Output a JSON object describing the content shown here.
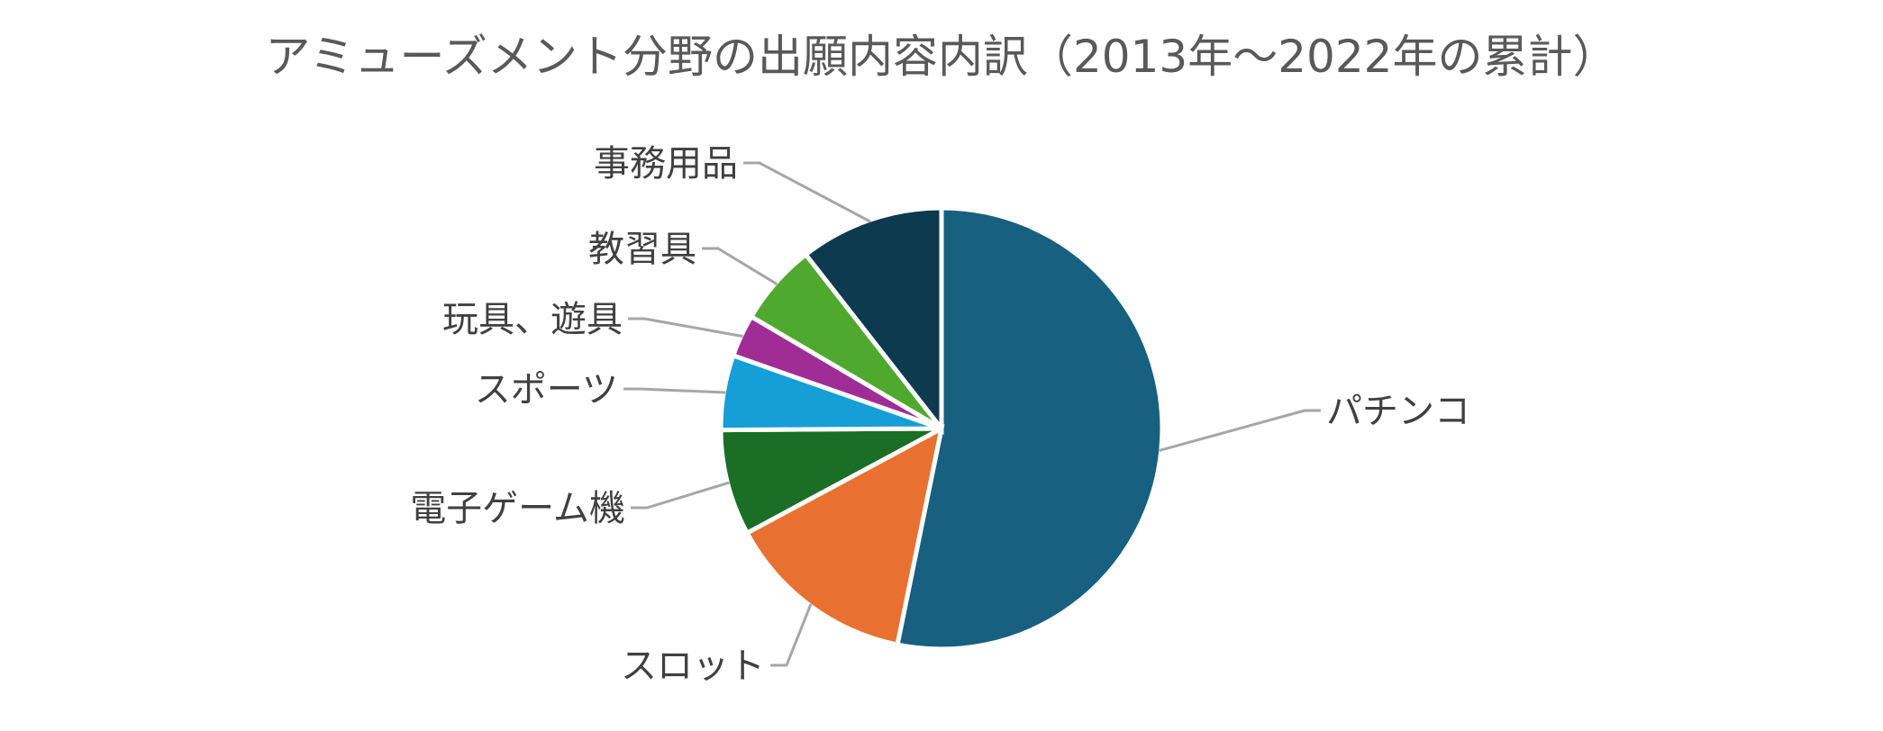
{
  "chart_data": {
    "type": "pie",
    "title": "アミューズメント分野の出願内容内訳（2013年〜2022年の累計）",
    "start_angle_deg": 0,
    "direction": "clockwise",
    "legend": "none",
    "slices": [
      {
        "label": "パチンコ",
        "value": 51.5,
        "color": "#17607f"
      },
      {
        "label": "スロット",
        "value": 13.5,
        "color": "#e87131"
      },
      {
        "label": "電子ゲーム機",
        "value": 7.5,
        "color": "#1a6e25"
      },
      {
        "label": "スポーツ",
        "value": 5.3,
        "color": "#169ed7"
      },
      {
        "label": "玩具、遊具",
        "value": 3.0,
        "color": "#a02d96"
      },
      {
        "label": "教習具",
        "value": 5.8,
        "color": "#4fa92f"
      },
      {
        "label": "事務用品",
        "value": 10.2,
        "color": "#0e3a50"
      }
    ]
  }
}
